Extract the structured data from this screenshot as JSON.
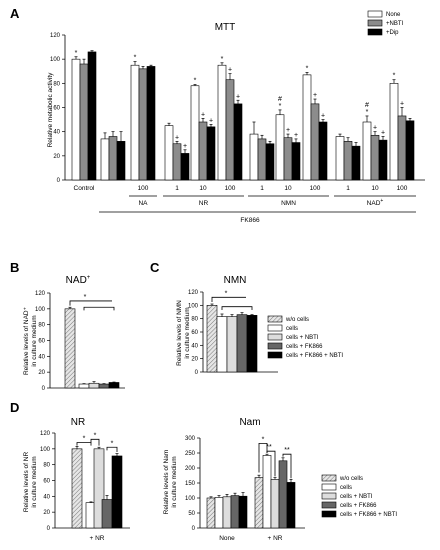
{
  "colors": {
    "white": "#ffffff",
    "grey": "#8c8c8c",
    "black": "#000000",
    "lightgrey": "#dddddd",
    "hatch": "#bbbbbb"
  },
  "chart_data": [
    {
      "panel": "A",
      "type": "bar",
      "title": "MTT",
      "ylabel": "Relative metabolic activity",
      "ylim": [
        0,
        120
      ],
      "yticks": [
        0,
        20,
        40,
        60,
        80,
        100,
        120
      ],
      "legend": {
        "placement": "top-right",
        "entries": [
          "None",
          "+NBTI",
          "+Dip"
        ]
      },
      "series_colors": [
        "#ffffff",
        "#8c8c8c",
        "#000000"
      ],
      "groups": [
        {
          "label": "Control",
          "values": [
            100,
            96,
            106
          ],
          "errors": [
            2,
            4,
            1
          ],
          "marks": [
            "*",
            "",
            ""
          ]
        },
        {
          "label": "",
          "values": [
            34,
            36,
            32
          ],
          "errors": [
            5,
            4,
            8
          ],
          "marks": [
            "",
            "",
            ""
          ]
        },
        {
          "label": "100",
          "values": [
            95,
            92,
            94
          ],
          "errors": [
            3,
            2,
            1
          ],
          "marks": [
            "*",
            "",
            ""
          ]
        },
        {
          "label": "1",
          "values": [
            45,
            30,
            22
          ],
          "errors": [
            2,
            2,
            3
          ],
          "marks": [
            "",
            "+",
            "+"
          ]
        },
        {
          "label": "10",
          "values": [
            78,
            48,
            44
          ],
          "errors": [
            1,
            3,
            2
          ],
          "marks": [
            "*",
            "+",
            "+"
          ]
        },
        {
          "label": "100",
          "values": [
            95,
            83,
            63
          ],
          "errors": [
            2,
            5,
            3
          ],
          "marks": [
            "*",
            "+",
            "+"
          ]
        },
        {
          "label": "1",
          "values": [
            38,
            34,
            30
          ],
          "errors": [
            10,
            3,
            2
          ],
          "marks": [
            "",
            "",
            ""
          ]
        },
        {
          "label": "10",
          "values": [
            54,
            35,
            31
          ],
          "errors": [
            4,
            3,
            3
          ],
          "marks": [
            "#*",
            "+",
            "+"
          ]
        },
        {
          "label": "100",
          "values": [
            87,
            63,
            48
          ],
          "errors": [
            2,
            4,
            2
          ],
          "marks": [
            "*",
            "+",
            "+"
          ]
        },
        {
          "label": "1",
          "values": [
            36,
            32,
            28
          ],
          "errors": [
            2,
            3,
            3
          ],
          "marks": [
            "",
            "",
            ""
          ]
        },
        {
          "label": "10",
          "values": [
            48,
            37,
            33
          ],
          "errors": [
            5,
            3,
            3
          ],
          "marks": [
            "#*",
            "+",
            "+"
          ]
        },
        {
          "label": "100",
          "values": [
            80,
            53,
            49
          ],
          "errors": [
            3,
            7,
            2
          ],
          "marks": [
            "*",
            "+",
            ""
          ]
        }
      ],
      "brackets": [
        {
          "label": "NA",
          "from": 2,
          "to": 2
        },
        {
          "label": "NR",
          "from": 3,
          "to": 5
        },
        {
          "label": "NMN",
          "from": 6,
          "to": 8
        },
        {
          "label": "NAD",
          "sup": "+",
          "from": 9,
          "to": 11
        }
      ],
      "outer_bracket": {
        "label": "FK866",
        "from": 1,
        "to": 11
      }
    },
    {
      "panel": "B",
      "type": "bar",
      "title": "NAD",
      "title_sup": "+",
      "ylabel": "Relative levels of NAD⁺ in culture medium",
      "ylim": [
        0,
        120
      ],
      "yticks": [
        0,
        20,
        40,
        60,
        80,
        100,
        120
      ],
      "values": [
        100,
        5,
        6,
        5,
        7
      ],
      "errors": [
        2,
        0.5,
        2,
        0.5,
        0.5
      ],
      "colors": [
        "#8c8c8c",
        "#ffffff",
        "#dddddd",
        "#666666",
        "#000000"
      ],
      "sig": "*"
    },
    {
      "panel": "C",
      "type": "bar",
      "title": "NMN",
      "ylabel": "Relative levels of NMN in culture medium",
      "ylim": [
        0,
        120
      ],
      "yticks": [
        0,
        20,
        40,
        60,
        80,
        100,
        120
      ],
      "values": [
        100,
        83,
        83,
        86,
        85
      ],
      "errors": [
        2,
        4,
        3,
        3,
        1
      ],
      "colors": [
        "#8c8c8c",
        "#ffffff",
        "#dddddd",
        "#666666",
        "#000000"
      ],
      "sig": "*",
      "legend": {
        "placement": "right",
        "entries": [
          "w/o cells",
          "cells",
          "cells + NBTI",
          "cells + FK866",
          "cells + FK866 + NBTI"
        ]
      }
    },
    {
      "panel": "D",
      "type": "bar",
      "title": "NR",
      "ylabel": "Relative levels of NR in culture medium",
      "ylim": [
        0,
        120
      ],
      "yticks": [
        0,
        20,
        40,
        60,
        80,
        100,
        120
      ],
      "category": "+ NR",
      "values": [
        100,
        32,
        100,
        36,
        91
      ],
      "errors": [
        3,
        1,
        2,
        5,
        3
      ],
      "colors": [
        "#8c8c8c",
        "#ffffff",
        "#dddddd",
        "#666666",
        "#000000"
      ],
      "marks": [
        "*",
        "*",
        "*"
      ]
    },
    {
      "panel": "",
      "type": "bar",
      "title": "Nam",
      "ylabel": "Relative levels of Nam in culture medium",
      "ylim": [
        0,
        300
      ],
      "yticks": [
        0,
        50,
        100,
        150,
        200,
        250,
        300
      ],
      "categories": [
        "None",
        "+ NR"
      ],
      "series": [
        {
          "name": "w/o cells",
          "values": [
            100,
            168
          ],
          "errors": [
            4,
            8
          ]
        },
        {
          "name": "cells",
          "values": [
            102,
            242
          ],
          "errors": [
            6,
            4
          ]
        },
        {
          "name": "cells + NBTI",
          "values": [
            104,
            162
          ],
          "errors": [
            8,
            6
          ]
        },
        {
          "name": "cells + FK866",
          "values": [
            108,
            224
          ],
          "errors": [
            8,
            10
          ]
        },
        {
          "name": "cells + FK866 + NBTI",
          "values": [
            106,
            152
          ],
          "errors": [
            12,
            10
          ]
        }
      ],
      "marks": [
        "*",
        "**",
        "**"
      ],
      "legend": {
        "placement": "right",
        "entries": [
          "w/o cells",
          "cells",
          "cells + NBTI",
          "cells + FK866",
          "cells + FK866 + NBTI"
        ]
      }
    }
  ]
}
